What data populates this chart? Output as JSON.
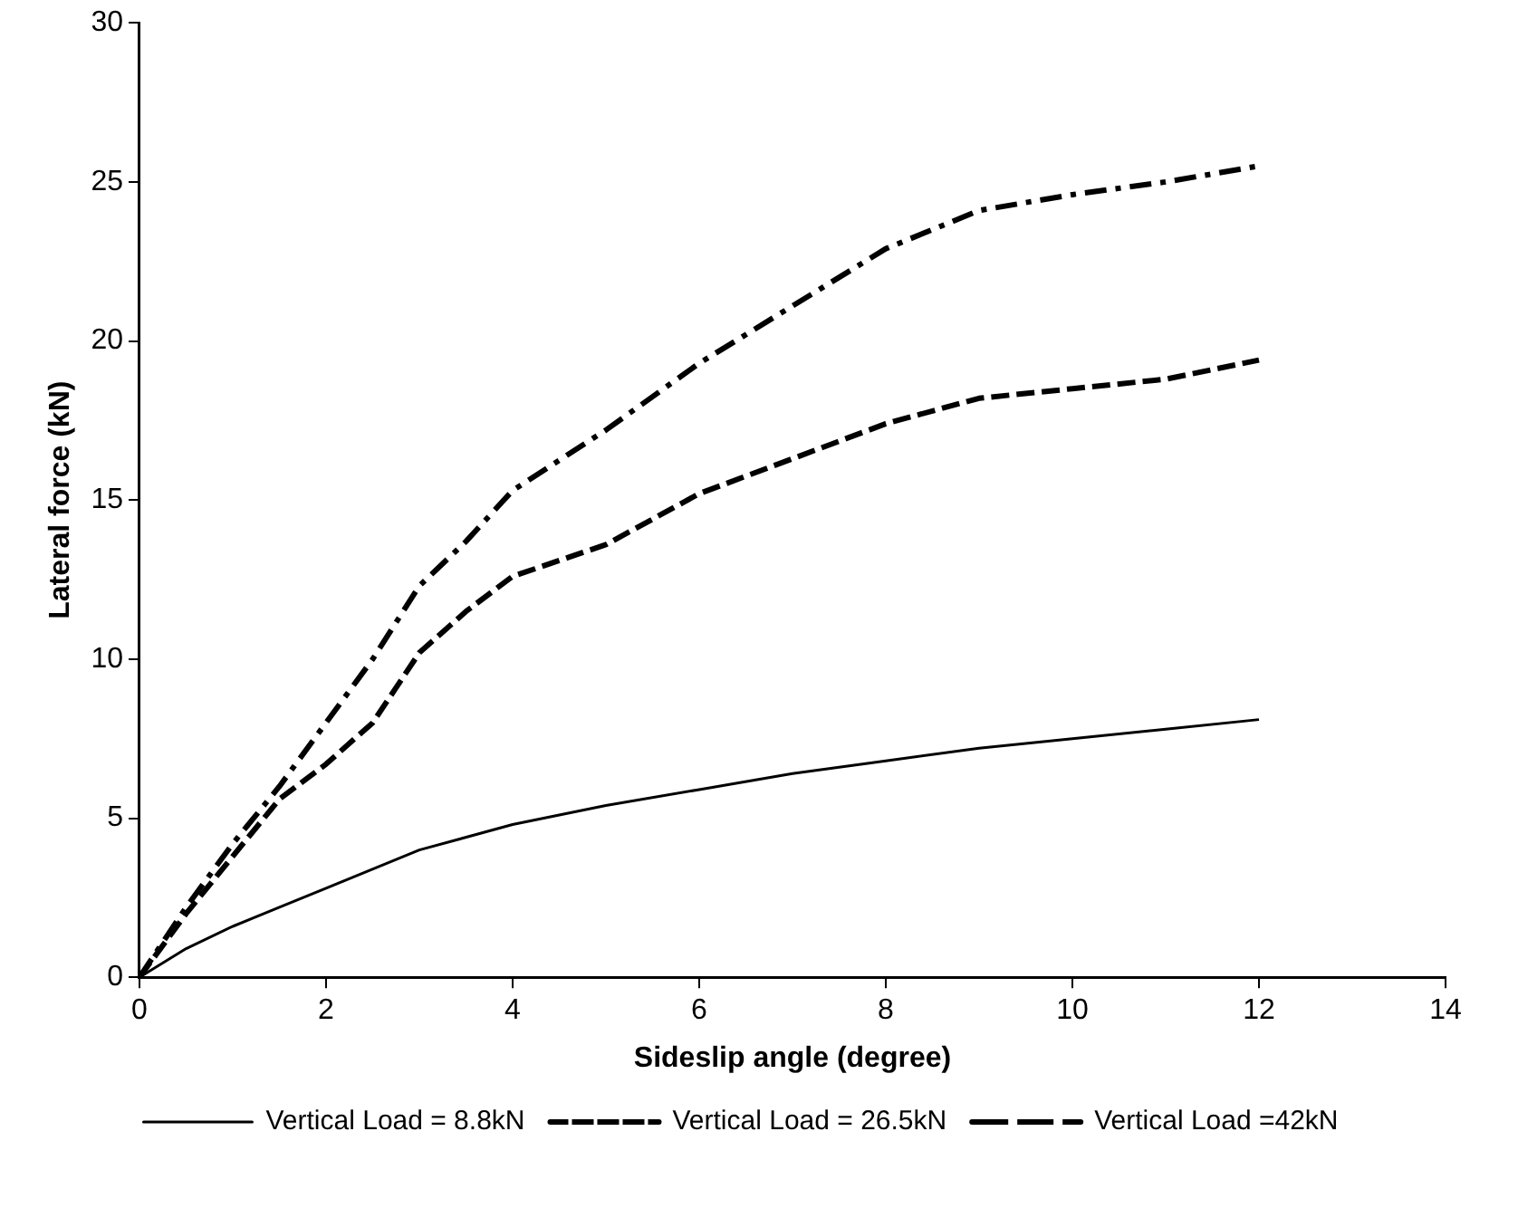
{
  "chart_data": {
    "type": "line",
    "xlabel": "Sideslip angle (degree)",
    "ylabel": "Lateral force (kN)",
    "xlim": [
      0,
      14
    ],
    "xticks": [
      0,
      2,
      4,
      6,
      8,
      10,
      12,
      14
    ],
    "ylim": [
      0,
      30
    ],
    "yticks": [
      0,
      5,
      10,
      15,
      20,
      25,
      30
    ],
    "grid": false,
    "legend": "bottom",
    "marker": "none",
    "series": [
      {
        "name": "Vertical Load = 8.8kN",
        "color": "#000000",
        "line_style": "solid",
        "x": [
          0,
          0.5,
          1,
          1.5,
          2,
          3,
          4,
          5,
          6,
          7,
          8,
          9,
          10,
          11,
          12
        ],
        "values": [
          0,
          0.9,
          1.6,
          2.2,
          2.8,
          4.0,
          4.8,
          5.4,
          5.9,
          6.4,
          6.8,
          7.2,
          7.5,
          7.8,
          8.1
        ]
      },
      {
        "name": "Vertical Load = 26.5kN",
        "color": "#000000",
        "line_style": "dashed",
        "x": [
          0,
          0.5,
          1,
          1.5,
          2,
          2.5,
          3,
          3.5,
          4,
          5,
          6,
          7,
          8,
          9,
          10,
          11,
          12
        ],
        "values": [
          0,
          2.0,
          3.8,
          5.6,
          6.7,
          8.0,
          10.2,
          11.5,
          12.6,
          13.6,
          15.2,
          16.3,
          17.4,
          18.2,
          18.5,
          18.8,
          19.4
        ]
      },
      {
        "name": "Vertical Load =42kN",
        "color": "#000000",
        "line_style": "dashdot",
        "x": [
          0,
          0.5,
          1,
          1.5,
          2,
          2.5,
          3,
          3.5,
          4,
          5,
          6,
          7,
          8,
          9,
          10,
          11,
          12
        ],
        "values": [
          0,
          2.2,
          4.2,
          6.0,
          8.0,
          10.0,
          12.3,
          13.7,
          15.3,
          17.2,
          19.3,
          21.1,
          22.9,
          24.1,
          24.6,
          25.0,
          25.5
        ]
      }
    ]
  }
}
